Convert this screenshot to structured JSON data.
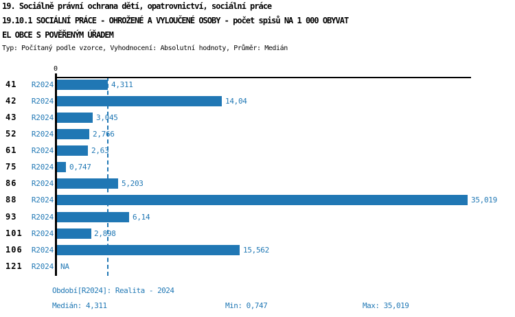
{
  "header": {
    "title_line1": "19. Sociálně právní ochrana dětí, opatrovnictví, sociální práce",
    "title_line2": "19.10.1 SOCIÁLNÍ PRÁCE - OHROŽENÉ A VYLOUČENÉ OSOBY - počet spisů NA 1 000 OBYVAT",
    "title_line3": "EL OBCE S POVĚŘENÝM ÚŘADEM",
    "subtitle": "Typ: Počítaný podle vzorce, Vyhodnocení: Absolutní hodnoty, Průměr: Medián"
  },
  "chart_data": {
    "type": "bar",
    "orientation": "horizontal",
    "title": "19.10.1 SOCIÁLNÍ PRÁCE - OHROŽENÉ A VYLOUČENÉ OSOBY - počet spisů NA 1 000 OBYVATEL OBCE S POVĚŘENÝM ÚŘADEM",
    "x_axis": {
      "zero_label": "0",
      "xlim": [
        0,
        35.4
      ],
      "grid": false
    },
    "median_value": 4.311,
    "bar_color": "#2077b4",
    "label_color": "#1f77b4",
    "categories": [
      "41",
      "42",
      "43",
      "52",
      "61",
      "75",
      "86",
      "88",
      "93",
      "101",
      "106",
      "121"
    ],
    "series_period": "R2024",
    "values": [
      4.311,
      14.04,
      3.045,
      2.766,
      2.63,
      0.747,
      5.203,
      35.019,
      6.14,
      2.898,
      15.562,
      null
    ],
    "rows": [
      {
        "id": "41",
        "period": "R2024",
        "value": 4.311,
        "value_label": "4,311"
      },
      {
        "id": "42",
        "period": "R2024",
        "value": 14.04,
        "value_label": "14,04"
      },
      {
        "id": "43",
        "period": "R2024",
        "value": 3.045,
        "value_label": "3,045"
      },
      {
        "id": "52",
        "period": "R2024",
        "value": 2.766,
        "value_label": "2,766"
      },
      {
        "id": "61",
        "period": "R2024",
        "value": 2.63,
        "value_label": "2,63"
      },
      {
        "id": "75",
        "period": "R2024",
        "value": 0.747,
        "value_label": "0,747"
      },
      {
        "id": "86",
        "period": "R2024",
        "value": 5.203,
        "value_label": "5,203"
      },
      {
        "id": "88",
        "period": "R2024",
        "value": 35.019,
        "value_label": "35,019"
      },
      {
        "id": "93",
        "period": "R2024",
        "value": 6.14,
        "value_label": "6,14"
      },
      {
        "id": "101",
        "period": "R2024",
        "value": 2.898,
        "value_label": "2,898"
      },
      {
        "id": "106",
        "period": "R2024",
        "value": 15.562,
        "value_label": "15,562"
      },
      {
        "id": "121",
        "period": "R2024",
        "value": null,
        "value_label": "NA"
      }
    ]
  },
  "footer": {
    "period_note": "Období[R2024]: Realita - 2024",
    "median": "Medián: 4,311",
    "min": "Min: 0,747",
    "max": "Max: 35,019"
  }
}
